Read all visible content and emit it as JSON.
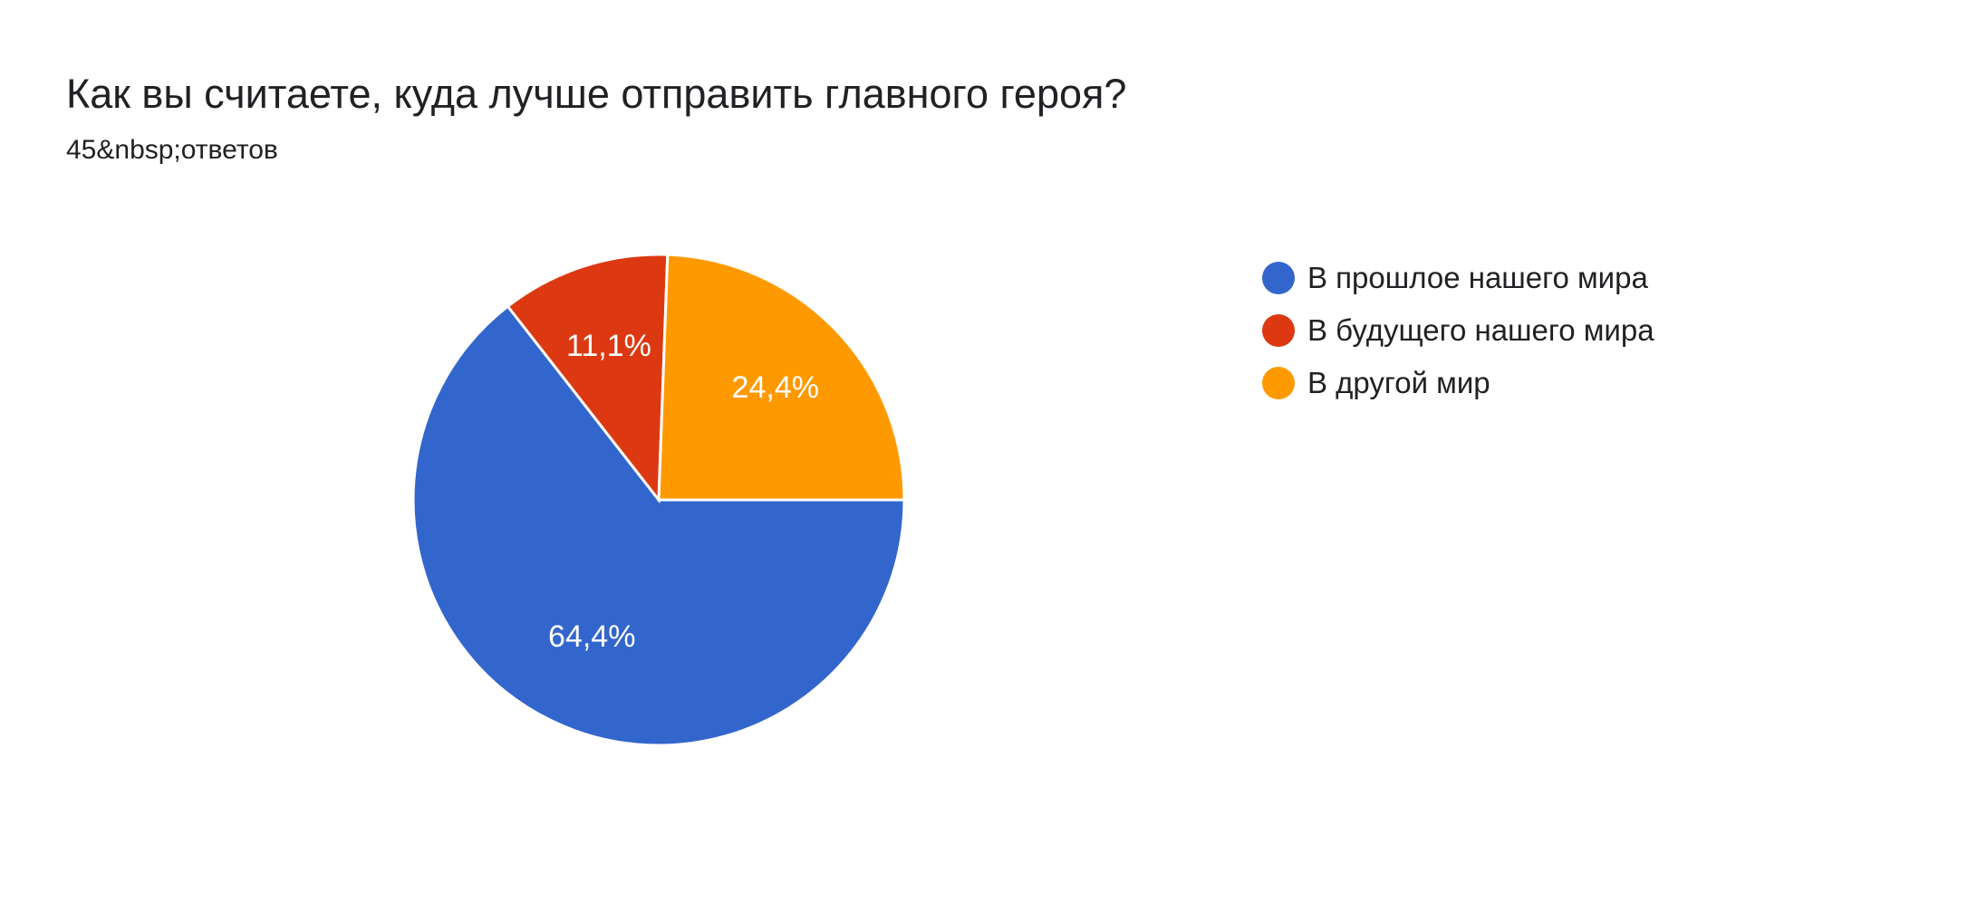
{
  "header": {
    "title": "Как вы считаете, куда лучше отправить главного героя?",
    "subtitle": "45&nbsp;ответов"
  },
  "chart_data": {
    "type": "pie",
    "total": 45,
    "slices": [
      {
        "label": "В прошлое нашего мира",
        "value": 64.4,
        "value_label": "64,4%",
        "color": "#3366cc"
      },
      {
        "label": "В будущего нашего мира",
        "value": 11.1,
        "value_label": "11,1%",
        "color": "#dc3912"
      },
      {
        "label": "В другой мир",
        "value": 24.4,
        "value_label": "24,4%",
        "color": "#ff9900"
      }
    ],
    "legend_position": "right"
  }
}
